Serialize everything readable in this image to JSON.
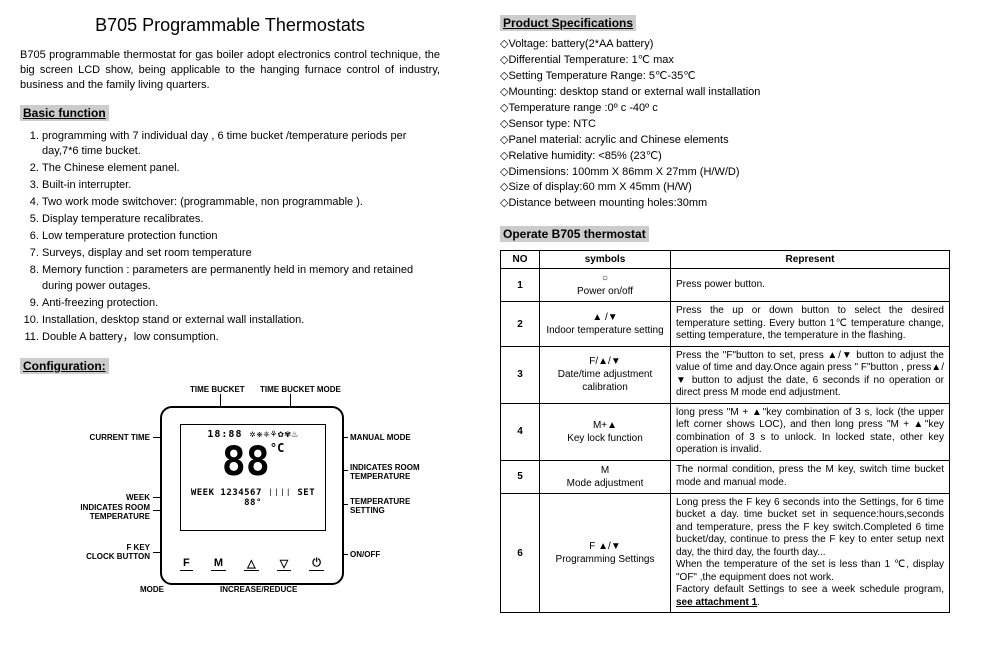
{
  "title": "B705 Programmable Thermostats",
  "intro": "B705 programmable thermostat for gas boiler adopt electronics control technique, the big screen LCD show, being applicable to the hanging furnace control of industry, business and the family living quarters.",
  "basic_head": "Basic function",
  "basic": [
    "programming with 7 individual day , 6 time bucket /temperature periods per day,7*6 time bucket.",
    "The Chinese element panel.",
    "Built-in interrupter.",
    "Two work mode switchover: (programmable, non programmable ).",
    "Display temperature recalibrates.",
    "Low temperature protection function",
    "Surveys, display and set room temperature",
    "Memory function : parameters are permanently held in memory and retained during power outages.",
    "Anti-freezing protection.",
    "Installation, desktop stand or external wall installation.",
    "Double A battery，low consumption."
  ],
  "config_head": "Configuration:",
  "spec_head": "Product Specifications",
  "specs": [
    "Voltage: battery(2*AA battery)",
    "Differential Temperature: 1℃ max",
    "Setting Temperature Range: 5℃-35℃",
    "Mounting: desktop stand or external wall installation",
    "Temperature range :0º c -40º c",
    "Sensor type: NTC",
    "Panel material: acrylic and Chinese elements",
    "Relative humidity: <85% (23℃)",
    "Dimensions: 100mm X 86mm X 27mm (H/W/D)",
    "Size of display:60 mm X 45mm (H/W)",
    "Distance between mounting holes:30mm"
  ],
  "op_head": "Operate B705 thermostat",
  "th_no": "NO",
  "th_sym": "symbols",
  "th_rep": "Represent",
  "rows": [
    {
      "no": "1",
      "symTop": "○",
      "symBot": "Power on/off",
      "rep": "Press power button."
    },
    {
      "no": "2",
      "symTop": "▲ /▼",
      "symBot": "Indoor temperature setting",
      "rep": "Press the up or down button to select the desired temperature setting. Every button 1℃ temperature change, setting temperature, the temperature in the flashing."
    },
    {
      "no": "3",
      "symTop": "F/▲/▼",
      "symBot": "Date/time adjustment calibration",
      "rep": "Press the \"F\"button to set, press ▲/▼ button to adjust the value of time and day.Once again press \" F\"button , press▲/▼  button to adjust the date, 6 seconds if no operation or direct press M mode end adjustment."
    },
    {
      "no": "4",
      "symTop": "M+▲",
      "symBot": "Key lock function",
      "rep": "long press \"M + ▲\"key combination of 3 s, lock (the upper left corner shows LOC), and then long press \"M + ▲\"key combination of 3 s to unlock. In locked state, other key operation is invalid."
    },
    {
      "no": "5",
      "symTop": "M",
      "symBot": "Mode adjustment",
      "rep": "The normal condition, press the M key, switch time bucket mode and manual mode."
    },
    {
      "no": "6",
      "symTop": "F ▲/▼",
      "symBot": "Programming Settings",
      "rep": "Long press the F key 6 seconds into the Settings, for 6 time bucket a day. time bucket set in sequence:hours,seconds and temperature, press the F key switch.Completed 6 time bucket/day, continue to press the F key to enter setup next day, the third day, the fourth day...\nWhen the temperature of the set is less than 1 ℃, display \"OF\" ,the equipment does not work.\nFactory default Settings to see a week schedule program, see attachment 1."
    }
  ],
  "diagram": {
    "labels": {
      "tb": "TIME BUCKET",
      "tbm": "TIME BUCKET MODE",
      "ct": "CURRENT TIME",
      "mm": "MANUAL MODE",
      "irt": "INDICATES ROOM\nTEMPERATURE",
      "week": "WEEK",
      "irt2": "INDICATES ROOM\nTEMPERATURE",
      "ts": "TEMPERATURE\nSETTING",
      "fkey": "F KEY\nCLOCK BUTTON",
      "onoff": "ON/OFF",
      "mode": "MODE",
      "ir": "INCREASE/REDUCE"
    },
    "lcd": {
      "top": "18:88 ✲❋❈⚘✿✾♨",
      "big": "88",
      "unit": "°C",
      "bot": "WEEK 1234567 ❘❘❘❘ SET 88°"
    },
    "btns": [
      "F",
      "M",
      "△",
      "▽",
      "⏻"
    ]
  }
}
